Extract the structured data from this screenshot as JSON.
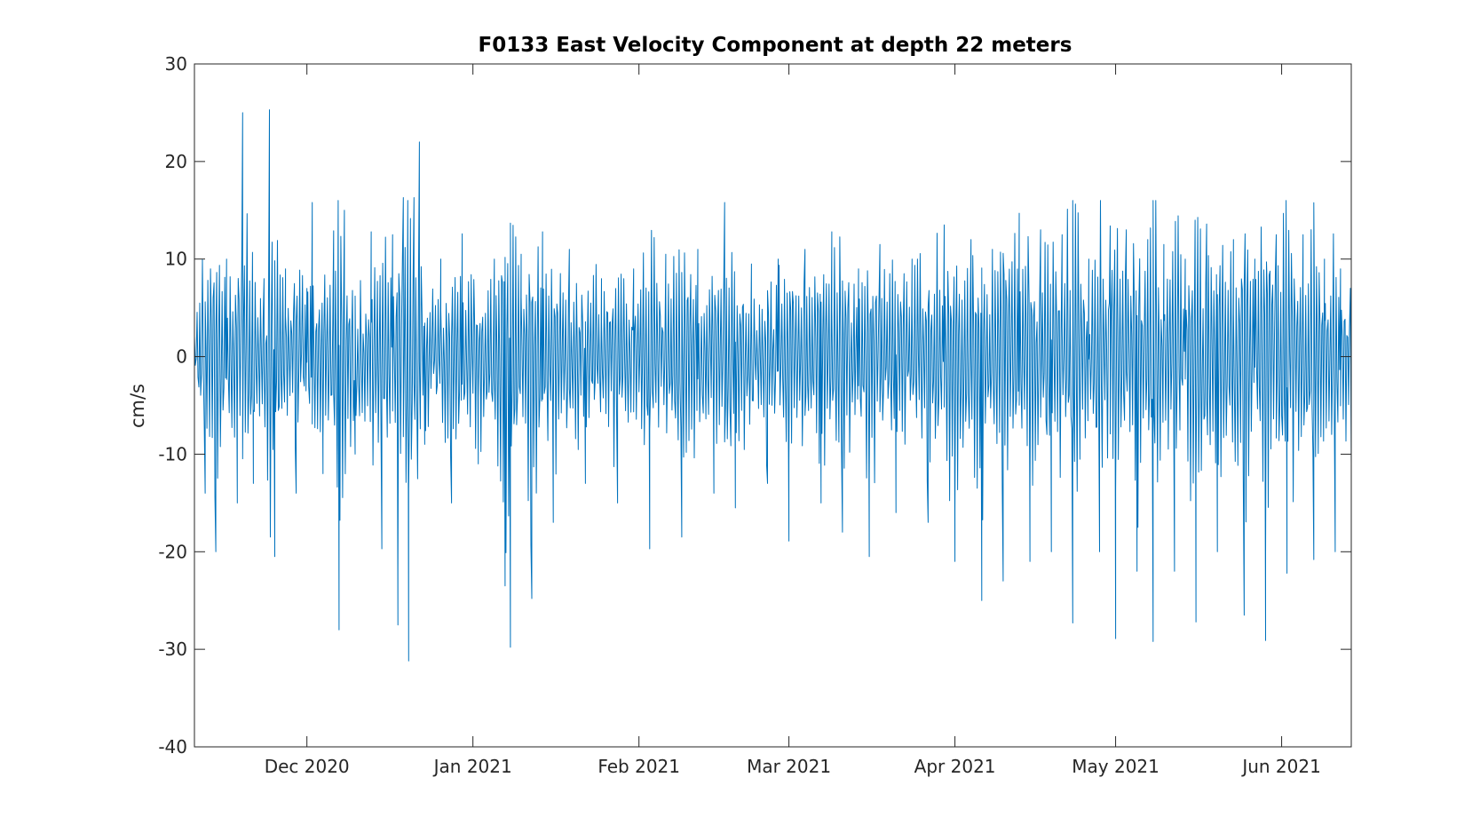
{
  "chart_data": {
    "type": "line",
    "title": "F0133 East Velocity Component at depth 22 meters",
    "xlabel": "",
    "ylabel": "cm/s",
    "ylim": [
      -40,
      30
    ],
    "xlim": [
      "2020-11-10",
      "2021-06-14"
    ],
    "y_ticks": [
      -40,
      -30,
      -20,
      -10,
      0,
      10,
      20,
      30
    ],
    "x_ticks": [
      {
        "date": "2020-12-01",
        "label": "Dec 2020"
      },
      {
        "date": "2021-01-01",
        "label": "Jan 2021"
      },
      {
        "date": "2021-02-01",
        "label": "Feb 2021"
      },
      {
        "date": "2021-03-01",
        "label": "Mar 2021"
      },
      {
        "date": "2021-04-01",
        "label": "Apr 2021"
      },
      {
        "date": "2021-05-01",
        "label": "May 2021"
      },
      {
        "date": "2021-06-01",
        "label": "Jun 2021"
      }
    ],
    "grid": false,
    "line_color": "#0072bd",
    "series": [
      {
        "values": [
          {
            "x": "2020-11-10",
            "y": 5
          },
          {
            "x": "2020-11-12",
            "y": -14
          },
          {
            "x": "2020-11-14",
            "y": -20
          },
          {
            "x": "2020-11-16",
            "y": 10
          },
          {
            "x": "2020-11-18",
            "y": -15
          },
          {
            "x": "2020-11-19",
            "y": 25
          },
          {
            "x": "2020-11-21",
            "y": -13
          },
          {
            "x": "2020-11-23",
            "y": 8
          },
          {
            "x": "2020-11-24",
            "y": 25.3
          },
          {
            "x": "2020-11-25",
            "y": -20.5
          },
          {
            "x": "2020-11-27",
            "y": 9
          },
          {
            "x": "2020-11-29",
            "y": -14
          },
          {
            "x": "2020-12-01",
            "y": 7
          },
          {
            "x": "2020-12-02",
            "y": 15.8
          },
          {
            "x": "2020-12-04",
            "y": -12
          },
          {
            "x": "2020-12-06",
            "y": 12.9
          },
          {
            "x": "2020-12-07",
            "y": -28
          },
          {
            "x": "2020-12-08",
            "y": 15
          },
          {
            "x": "2020-12-10",
            "y": -10
          },
          {
            "x": "2020-12-13",
            "y": 12.8
          },
          {
            "x": "2020-12-15",
            "y": -19.7
          },
          {
            "x": "2020-12-17",
            "y": 12.5
          },
          {
            "x": "2020-12-18",
            "y": -27.5
          },
          {
            "x": "2020-12-19",
            "y": 16.3
          },
          {
            "x": "2020-12-20",
            "y": -31.2
          },
          {
            "x": "2020-12-21",
            "y": 16.3
          },
          {
            "x": "2020-12-22",
            "y": 22
          },
          {
            "x": "2020-12-23",
            "y": -9
          },
          {
            "x": "2020-12-26",
            "y": 10
          },
          {
            "x": "2020-12-28",
            "y": -15
          },
          {
            "x": "2020-12-30",
            "y": 12.6
          },
          {
            "x": "2021-01-02",
            "y": -11
          },
          {
            "x": "2021-01-05",
            "y": 10
          },
          {
            "x": "2021-01-07",
            "y": -23.5
          },
          {
            "x": "2021-01-08",
            "y": -29.8
          },
          {
            "x": "2021-01-10",
            "y": 10.5
          },
          {
            "x": "2021-01-12",
            "y": -24.8
          },
          {
            "x": "2021-01-14",
            "y": 12.8
          },
          {
            "x": "2021-01-16",
            "y": -17
          },
          {
            "x": "2021-01-19",
            "y": 11
          },
          {
            "x": "2021-01-22",
            "y": -13
          },
          {
            "x": "2021-01-25",
            "y": 8
          },
          {
            "x": "2021-01-28",
            "y": -15
          },
          {
            "x": "2021-01-31",
            "y": 9
          },
          {
            "x": "2021-02-03",
            "y": -19.7
          },
          {
            "x": "2021-02-06",
            "y": 10.5
          },
          {
            "x": "2021-02-09",
            "y": -18.5
          },
          {
            "x": "2021-02-12",
            "y": 11
          },
          {
            "x": "2021-02-15",
            "y": -14
          },
          {
            "x": "2021-02-17",
            "y": 15.8
          },
          {
            "x": "2021-02-19",
            "y": -15.5
          },
          {
            "x": "2021-02-22",
            "y": 9.5
          },
          {
            "x": "2021-02-25",
            "y": -13
          },
          {
            "x": "2021-02-27",
            "y": 10
          },
          {
            "x": "2021-03-01",
            "y": -18.9
          },
          {
            "x": "2021-03-04",
            "y": 11
          },
          {
            "x": "2021-03-07",
            "y": -15
          },
          {
            "x": "2021-03-09",
            "y": 12.8
          },
          {
            "x": "2021-03-11",
            "y": -18
          },
          {
            "x": "2021-03-14",
            "y": 9
          },
          {
            "x": "2021-03-16",
            "y": -20.5
          },
          {
            "x": "2021-03-18",
            "y": 11.5
          },
          {
            "x": "2021-03-21",
            "y": -16
          },
          {
            "x": "2021-03-24",
            "y": 10
          },
          {
            "x": "2021-03-27",
            "y": -17
          },
          {
            "x": "2021-03-30",
            "y": 13.5
          },
          {
            "x": "2021-04-01",
            "y": -21
          },
          {
            "x": "2021-04-04",
            "y": 12
          },
          {
            "x": "2021-04-06",
            "y": -25
          },
          {
            "x": "2021-04-08",
            "y": 11
          },
          {
            "x": "2021-04-10",
            "y": -23
          },
          {
            "x": "2021-04-13",
            "y": 14.7
          },
          {
            "x": "2021-04-15",
            "y": -21
          },
          {
            "x": "2021-04-17",
            "y": 13
          },
          {
            "x": "2021-04-19",
            "y": -20
          },
          {
            "x": "2021-04-21",
            "y": 12.5
          },
          {
            "x": "2021-04-23",
            "y": -27.3
          },
          {
            "x": "2021-04-26",
            "y": 10
          },
          {
            "x": "2021-04-28",
            "y": -20
          },
          {
            "x": "2021-04-30",
            "y": 13.4
          },
          {
            "x": "2021-05-01",
            "y": -28.9
          },
          {
            "x": "2021-05-03",
            "y": 13
          },
          {
            "x": "2021-05-05",
            "y": -22
          },
          {
            "x": "2021-05-07",
            "y": 12
          },
          {
            "x": "2021-05-08",
            "y": -29.2
          },
          {
            "x": "2021-05-10",
            "y": 11.5
          },
          {
            "x": "2021-05-12",
            "y": -22
          },
          {
            "x": "2021-05-14",
            "y": 10
          },
          {
            "x": "2021-05-16",
            "y": -27.2
          },
          {
            "x": "2021-05-18",
            "y": 13.6
          },
          {
            "x": "2021-05-20",
            "y": -20
          },
          {
            "x": "2021-05-23",
            "y": 12
          },
          {
            "x": "2021-05-25",
            "y": -26.5
          },
          {
            "x": "2021-05-27",
            "y": 10
          },
          {
            "x": "2021-05-29",
            "y": -29.1
          },
          {
            "x": "2021-05-31",
            "y": 12.5
          },
          {
            "x": "2021-06-02",
            "y": -22.2
          },
          {
            "x": "2021-06-05",
            "y": 12.5
          },
          {
            "x": "2021-06-07",
            "y": -20.8
          },
          {
            "x": "2021-06-09",
            "y": 10
          },
          {
            "x": "2021-06-11",
            "y": -20
          },
          {
            "x": "2021-06-12",
            "y": 9
          },
          {
            "x": "2021-06-14",
            "y": -11
          }
        ]
      }
    ]
  }
}
